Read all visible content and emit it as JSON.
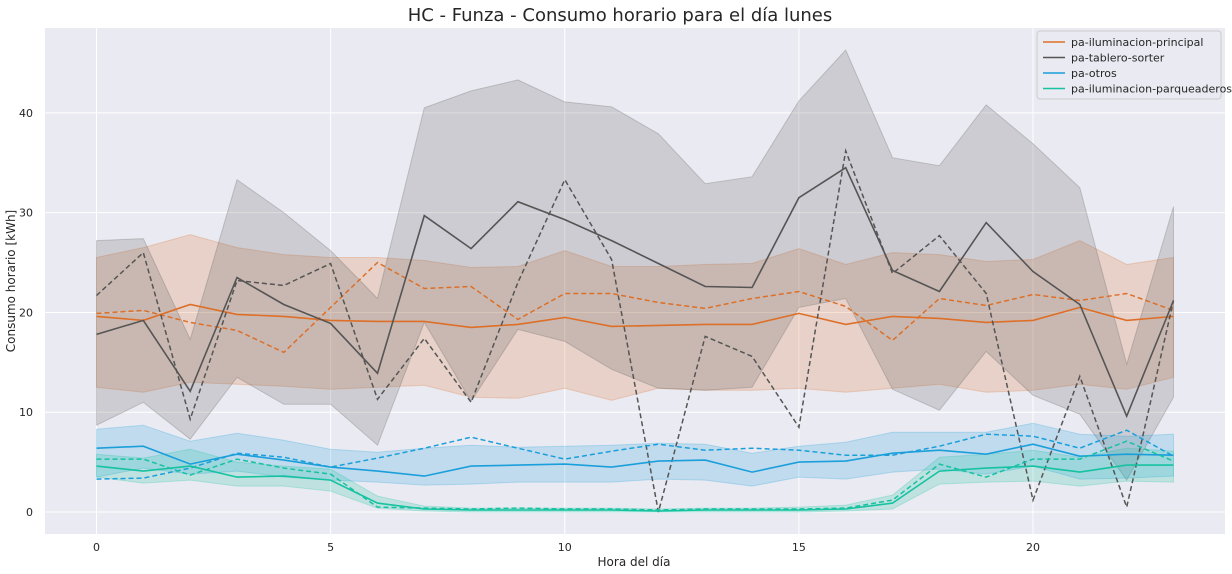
{
  "chart_data": {
    "type": "line",
    "title": "HC - Funza - Consumo horario para el día lunes",
    "xlabel": "Hora del día",
    "ylabel": "Consumo horario [kWh]",
    "xlim": [
      -1.1,
      24.1
    ],
    "ylim": [
      -2.2,
      48.5
    ],
    "xticks": [
      0,
      5,
      10,
      15,
      20
    ],
    "yticks": [
      0,
      10,
      20,
      30,
      40
    ],
    "grid": true,
    "legend_position": "top-right",
    "x": [
      0,
      1,
      2,
      3,
      4,
      5,
      6,
      7,
      8,
      9,
      10,
      11,
      12,
      13,
      14,
      15,
      16,
      17,
      18,
      19,
      20,
      21,
      22,
      23
    ],
    "series": [
      {
        "name": "pa-iluminacion-principal",
        "color": "#dd6f28",
        "mean": [
          19.6,
          19.2,
          20.8,
          19.8,
          19.6,
          19.2,
          19.1,
          19.1,
          18.5,
          18.8,
          19.5,
          18.6,
          18.7,
          18.8,
          18.8,
          19.9,
          18.8,
          19.6,
          19.4,
          19.0,
          19.2,
          20.5,
          19.2,
          19.6
        ],
        "band_upper": [
          25.5,
          26.5,
          27.8,
          26.5,
          25.8,
          25.5,
          25.5,
          25.2,
          24.5,
          24.6,
          26.2,
          24.6,
          24.6,
          24.8,
          24.9,
          26.4,
          24.8,
          26.0,
          25.8,
          25.1,
          25.3,
          27.2,
          24.8,
          25.5
        ],
        "band_lower": [
          12.5,
          12.0,
          13.0,
          12.8,
          12.6,
          12.3,
          12.5,
          12.7,
          11.5,
          11.4,
          12.4,
          11.2,
          12.4,
          12.2,
          12.2,
          12.4,
          12.0,
          12.4,
          12.8,
          12.0,
          12.2,
          12.8,
          12.3,
          13.5
        ],
        "dashed": [
          19.9,
          20.2,
          19.0,
          18.2,
          16.0,
          20.5,
          25.0,
          22.4,
          22.6,
          19.3,
          21.9,
          21.9,
          21.0,
          20.4,
          21.4,
          22.1,
          20.6,
          17.2,
          21.4,
          20.7,
          21.8,
          21.2,
          21.9,
          20.2
        ]
      },
      {
        "name": "pa-tablero-sorter",
        "color": "#555555",
        "mean": [
          17.8,
          19.2,
          12.1,
          23.5,
          20.8,
          18.9,
          13.9,
          29.7,
          26.4,
          31.1,
          29.3,
          27.2,
          24.9,
          22.6,
          22.5,
          31.5,
          34.5,
          24.2,
          22.1,
          29.0,
          24.1,
          20.8,
          9.6,
          21.2
        ],
        "band_upper": [
          27.2,
          27.4,
          17.3,
          33.3,
          30.0,
          26.2,
          21.4,
          40.5,
          42.2,
          43.3,
          41.1,
          40.6,
          37.9,
          32.9,
          33.6,
          41.2,
          46.3,
          35.5,
          34.7,
          40.8,
          36.9,
          32.5,
          14.8,
          30.6
        ],
        "band_lower": [
          8.7,
          11.0,
          7.3,
          13.5,
          10.8,
          10.8,
          6.7,
          19.0,
          11.1,
          18.3,
          17.1,
          14.3,
          12.4,
          12.2,
          12.5,
          20.5,
          21.4,
          12.3,
          10.2,
          16.1,
          11.7,
          9.8,
          3.2,
          11.5
        ],
        "dashed": [
          21.7,
          26.0,
          9.3,
          23.2,
          22.7,
          24.9,
          11.3,
          17.4,
          11.0,
          23.0,
          33.3,
          25.3,
          0.0,
          17.6,
          15.6,
          8.5,
          36.2,
          23.9,
          27.7,
          21.9,
          1.2,
          13.6,
          0.5,
          21.2
        ]
      },
      {
        "name": "pa-otros",
        "color": "#1b9fdb",
        "mean": [
          6.4,
          6.6,
          4.8,
          5.8,
          5.2,
          4.5,
          4.1,
          3.6,
          4.6,
          4.7,
          4.8,
          4.5,
          5.1,
          5.2,
          4.0,
          5.0,
          5.1,
          5.9,
          6.2,
          5.8,
          6.8,
          5.6,
          5.8,
          5.7
        ],
        "band_upper": [
          8.3,
          8.7,
          7.1,
          7.9,
          7.2,
          6.3,
          6.0,
          6.4,
          6.7,
          6.5,
          6.6,
          6.7,
          6.9,
          6.8,
          5.9,
          6.6,
          7.0,
          8.0,
          8.0,
          8.0,
          8.9,
          7.8,
          7.6,
          7.8
        ],
        "band_lower": [
          3.5,
          4.4,
          3.8,
          4.1,
          3.5,
          3.2,
          3.0,
          2.7,
          2.8,
          3.0,
          3.0,
          3.0,
          3.3,
          3.2,
          2.6,
          3.5,
          3.3,
          4.0,
          4.3,
          3.8,
          4.6,
          3.3,
          3.4,
          3.6
        ],
        "dashed": [
          3.3,
          3.4,
          4.4,
          5.9,
          5.5,
          4.5,
          5.4,
          6.4,
          7.5,
          6.4,
          5.3,
          6.1,
          6.8,
          6.2,
          6.4,
          6.2,
          5.7,
          5.7,
          6.6,
          7.8,
          7.6,
          6.4,
          8.2,
          5.6
        ]
      },
      {
        "name": "pa-iluminacion-parqueaderos",
        "color": "#16c2a0",
        "mean": [
          4.6,
          4.1,
          4.6,
          3.5,
          3.6,
          3.2,
          0.9,
          0.3,
          0.2,
          0.2,
          0.2,
          0.2,
          0.1,
          0.2,
          0.2,
          0.2,
          0.3,
          0.9,
          4.1,
          4.4,
          4.6,
          4.0,
          4.7,
          4.7
        ],
        "band_upper": [
          5.8,
          5.4,
          6.3,
          5.0,
          4.6,
          4.3,
          1.6,
          0.6,
          0.4,
          0.4,
          0.4,
          0.4,
          0.3,
          0.4,
          0.4,
          0.5,
          0.7,
          1.7,
          5.5,
          5.8,
          6.2,
          5.5,
          6.4,
          6.1
        ],
        "band_lower": [
          3.5,
          2.9,
          3.2,
          2.6,
          2.6,
          2.1,
          0.4,
          0.1,
          0.0,
          0.0,
          0.0,
          0.0,
          0.0,
          0.0,
          0.0,
          0.0,
          0.1,
          0.3,
          2.8,
          3.0,
          3.1,
          2.6,
          3.1,
          3.0
        ],
        "dashed": [
          5.3,
          5.3,
          3.7,
          5.3,
          4.4,
          3.8,
          0.5,
          0.4,
          0.3,
          0.4,
          0.3,
          0.3,
          0.2,
          0.3,
          0.3,
          0.3,
          0.4,
          1.2,
          4.8,
          3.5,
          5.3,
          5.3,
          7.1,
          5.1
        ]
      }
    ]
  }
}
